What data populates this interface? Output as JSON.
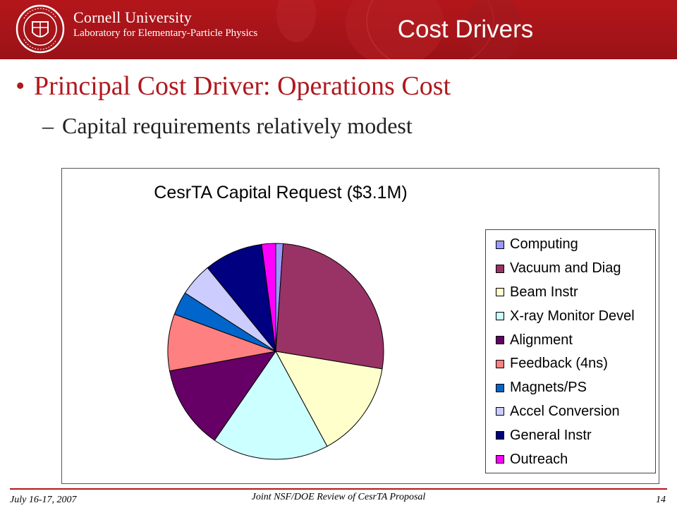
{
  "header": {
    "university": "Cornell University",
    "laboratory": "Laboratory for Elementary-Particle Physics",
    "slide_title": "Cost Drivers",
    "colors": {
      "banner": "#a51419",
      "text": "#ffffff"
    }
  },
  "content": {
    "bullet_1": "Principal Cost Driver:  Operations Cost",
    "bullet_2": "Capital requirements relatively modest"
  },
  "chart_data": {
    "type": "pie",
    "title": "CesrTA Capital Request ($3.1M)",
    "legend_position": "right",
    "slices": [
      {
        "label": "Computing",
        "value": 1.1,
        "color": "#9999ff"
      },
      {
        "label": "Vacuum and Diag",
        "value": 26.5,
        "color": "#993366"
      },
      {
        "label": "Beam Instr",
        "value": 14.5,
        "color": "#ffffcc"
      },
      {
        "label": "X-ray Monitor Devel",
        "value": 17.5,
        "color": "#ccffff"
      },
      {
        "label": "Alignment",
        "value": 12.5,
        "color": "#660066"
      },
      {
        "label": "Feedback (4ns)",
        "value": 8.5,
        "color": "#ff8080"
      },
      {
        "label": "Magnets/PS",
        "value": 3.5,
        "color": "#0066cc"
      },
      {
        "label": "Accel Conversion",
        "value": 5.0,
        "color": "#ccccff"
      },
      {
        "label": "General Instr",
        "value": 8.8,
        "color": "#000080"
      },
      {
        "label": "Outreach",
        "value": 2.1,
        "color": "#ff00ff"
      }
    ]
  },
  "footer": {
    "date": "July 16-17, 2007",
    "event": "Joint NSF/DOE Review of CesrTA Proposal",
    "page": "14",
    "line_color": "#b0181e"
  }
}
